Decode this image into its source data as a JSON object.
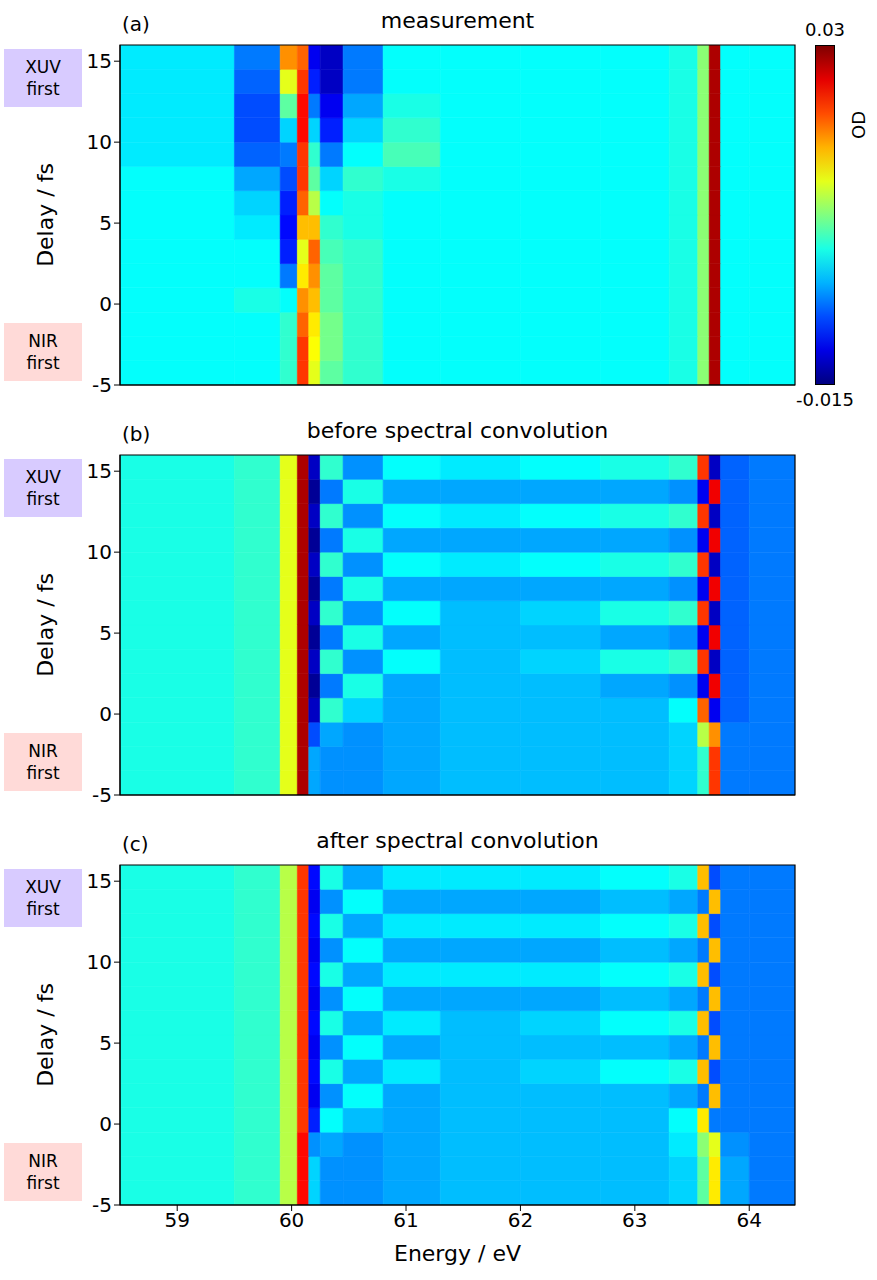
{
  "chart_data": [
    {
      "type": "heatmap",
      "title": "measurement",
      "panel_label": "(a)",
      "y_label": "Delay / fs",
      "xlim": [
        58.5,
        64.4
      ],
      "xticks": [
        59,
        60,
        61,
        62,
        63,
        64
      ],
      "ylim": [
        -5,
        16
      ],
      "yticks": [
        -5,
        0,
        5,
        10,
        15
      ],
      "tick_labels": "y",
      "annotations": [
        {
          "text": "XUV first",
          "color": "#d8cbff"
        },
        {
          "text": "NIR first",
          "color": "#ffdad8"
        }
      ],
      "colorbar": {
        "range": [
          -0.015,
          0.03
        ],
        "ticks": [
          0.03,
          -0.015
        ],
        "label": "OD"
      },
      "x_edges": [
        58.5,
        59.5,
        59.9,
        60.05,
        60.15,
        60.25,
        60.45,
        60.8,
        61.3,
        62.0,
        62.7,
        63.3,
        63.55,
        63.65,
        63.75,
        64.0,
        64.4
      ],
      "y_edges": [
        -5,
        -3.5,
        -2,
        -0.5,
        1,
        2.5,
        4,
        5.5,
        7,
        8.5,
        10,
        11.5,
        13,
        14.5,
        16
      ],
      "cells": [
        [
          0.002,
          0.002,
          0.004,
          0.022,
          0.012,
          0.006,
          0.004,
          0.002,
          0.002,
          0.002,
          0.002,
          0.003,
          0.008,
          0.028,
          0.002,
          0.002
        ],
        [
          0.002,
          0.002,
          0.004,
          0.022,
          0.013,
          0.007,
          0.004,
          0.002,
          0.002,
          0.002,
          0.002,
          0.003,
          0.008,
          0.028,
          0.002,
          0.002
        ],
        [
          0.002,
          0.002,
          0.004,
          0.02,
          0.014,
          0.007,
          0.004,
          0.002,
          0.002,
          0.002,
          0.002,
          0.003,
          0.008,
          0.028,
          0.002,
          0.002
        ],
        [
          0.002,
          0.003,
          0.002,
          0.018,
          0.016,
          0.006,
          0.004,
          0.002,
          0.002,
          0.002,
          0.002,
          0.003,
          0.008,
          0.028,
          0.002,
          0.002
        ],
        [
          0.002,
          0.002,
          -0.004,
          0.014,
          0.018,
          0.006,
          0.004,
          0.002,
          0.002,
          0.002,
          0.002,
          0.003,
          0.008,
          0.028,
          0.002,
          0.002
        ],
        [
          0.002,
          0.002,
          -0.008,
          0.012,
          0.02,
          0.005,
          0.004,
          0.002,
          0.002,
          0.002,
          0.002,
          0.003,
          0.008,
          0.028,
          0.002,
          0.002
        ],
        [
          0.002,
          0.001,
          -0.009,
          0.016,
          0.016,
          0.004,
          0.003,
          0.002,
          0.002,
          0.002,
          0.002,
          0.003,
          0.008,
          0.028,
          0.002,
          0.002
        ],
        [
          0.002,
          0.0,
          -0.008,
          0.02,
          0.01,
          0.002,
          0.003,
          0.002,
          0.002,
          0.002,
          0.002,
          0.003,
          0.008,
          0.028,
          0.002,
          0.002
        ],
        [
          0.002,
          -0.002,
          -0.006,
          0.022,
          0.006,
          0.0,
          0.004,
          0.003,
          0.002,
          0.002,
          0.002,
          0.003,
          0.008,
          0.028,
          0.002,
          0.002
        ],
        [
          0.001,
          -0.005,
          -0.004,
          0.022,
          0.004,
          -0.004,
          0.002,
          0.005,
          0.002,
          0.002,
          0.002,
          0.003,
          0.008,
          0.028,
          0.002,
          0.002
        ],
        [
          0.001,
          -0.006,
          0.0,
          0.024,
          0.0,
          -0.008,
          0.0,
          0.004,
          0.002,
          0.002,
          0.002,
          0.003,
          0.008,
          0.028,
          0.002,
          0.002
        ],
        [
          0.001,
          -0.006,
          0.006,
          0.024,
          -0.004,
          -0.01,
          -0.002,
          0.003,
          0.002,
          0.002,
          0.002,
          0.003,
          0.008,
          0.028,
          0.002,
          0.002
        ],
        [
          0.001,
          -0.005,
          0.012,
          0.022,
          -0.008,
          -0.012,
          -0.004,
          0.002,
          0.002,
          0.002,
          0.002,
          0.003,
          0.008,
          0.028,
          0.002,
          0.002
        ],
        [
          0.001,
          -0.004,
          0.018,
          0.02,
          -0.01,
          -0.012,
          -0.004,
          0.002,
          0.002,
          0.002,
          0.002,
          0.003,
          0.008,
          0.028,
          0.002,
          0.002
        ]
      ]
    },
    {
      "type": "heatmap",
      "title": "before spectral convolution",
      "panel_label": "(b)",
      "y_label": "Delay / fs",
      "xlim": [
        58.5,
        64.4
      ],
      "xticks": [
        59,
        60,
        61,
        62,
        63,
        64
      ],
      "ylim": [
        -5,
        16
      ],
      "yticks": [
        -5,
        0,
        5,
        10,
        15
      ],
      "tick_labels": "y",
      "annotations": [
        {
          "text": "XUV first",
          "color": "#d8cbff"
        },
        {
          "text": "NIR first",
          "color": "#ffdad8"
        }
      ],
      "x_edges": [
        58.5,
        59.5,
        59.9,
        60.05,
        60.15,
        60.25,
        60.45,
        60.8,
        61.3,
        62.0,
        62.7,
        63.3,
        63.55,
        63.65,
        63.75,
        64.0,
        64.4
      ],
      "y_edges": [
        -5,
        -3.5,
        -2,
        -0.5,
        1,
        2.5,
        4,
        5.5,
        7,
        8.5,
        10,
        11.5,
        13,
        14.5,
        16
      ],
      "cells": [
        [
          0.003,
          0.004,
          0.012,
          0.028,
          -0.002,
          -0.003,
          -0.003,
          -0.002,
          -0.001,
          -0.001,
          -0.001,
          0.0,
          0.004,
          0.022,
          -0.004,
          -0.004
        ],
        [
          0.003,
          0.004,
          0.012,
          0.028,
          -0.002,
          -0.003,
          -0.003,
          -0.002,
          -0.001,
          -0.001,
          -0.001,
          0.0,
          0.004,
          0.022,
          -0.004,
          -0.004
        ],
        [
          0.003,
          0.004,
          0.012,
          0.028,
          -0.006,
          -0.002,
          -0.003,
          -0.002,
          -0.001,
          -0.001,
          -0.001,
          0.0,
          0.01,
          0.018,
          -0.004,
          -0.004
        ],
        [
          0.003,
          0.004,
          0.012,
          0.028,
          -0.012,
          0.004,
          0.0,
          -0.002,
          -0.001,
          -0.001,
          -0.001,
          0.002,
          0.02,
          -0.01,
          -0.005,
          -0.004
        ],
        [
          0.003,
          0.004,
          0.012,
          0.028,
          -0.014,
          -0.004,
          0.003,
          -0.002,
          -0.001,
          -0.001,
          -0.002,
          -0.003,
          -0.01,
          0.025,
          -0.005,
          -0.004
        ],
        [
          0.003,
          0.004,
          0.012,
          0.028,
          -0.012,
          0.004,
          -0.003,
          0.002,
          -0.001,
          0.0,
          0.003,
          0.004,
          0.022,
          -0.012,
          -0.005,
          -0.004
        ],
        [
          0.003,
          0.004,
          0.012,
          0.028,
          -0.014,
          -0.004,
          0.003,
          -0.002,
          -0.001,
          -0.001,
          -0.002,
          -0.003,
          -0.01,
          0.025,
          -0.005,
          -0.004
        ],
        [
          0.003,
          0.004,
          0.012,
          0.028,
          -0.012,
          0.004,
          -0.003,
          0.002,
          -0.001,
          0.0,
          0.003,
          0.004,
          0.022,
          -0.012,
          -0.005,
          -0.004
        ],
        [
          0.003,
          0.004,
          0.012,
          0.028,
          -0.014,
          -0.004,
          0.003,
          -0.002,
          -0.002,
          -0.002,
          -0.002,
          -0.003,
          -0.01,
          0.025,
          -0.005,
          -0.004
        ],
        [
          0.003,
          0.004,
          0.012,
          0.028,
          -0.012,
          0.004,
          -0.003,
          0.002,
          0.001,
          0.002,
          0.003,
          0.004,
          0.022,
          -0.012,
          -0.005,
          -0.004
        ],
        [
          0.003,
          0.004,
          0.012,
          0.028,
          -0.014,
          -0.004,
          0.003,
          -0.002,
          -0.002,
          -0.002,
          -0.002,
          -0.003,
          -0.01,
          0.025,
          -0.005,
          -0.004
        ],
        [
          0.003,
          0.004,
          0.012,
          0.028,
          -0.012,
          0.004,
          -0.003,
          0.002,
          0.001,
          0.002,
          0.003,
          0.004,
          0.022,
          -0.012,
          -0.005,
          -0.004
        ],
        [
          0.003,
          0.004,
          0.012,
          0.028,
          -0.014,
          -0.004,
          0.003,
          -0.002,
          -0.002,
          -0.002,
          -0.002,
          -0.003,
          -0.01,
          0.025,
          -0.005,
          -0.004
        ],
        [
          0.003,
          0.004,
          0.012,
          0.028,
          -0.012,
          0.004,
          -0.003,
          0.002,
          0.001,
          0.002,
          0.003,
          0.004,
          0.022,
          -0.012,
          -0.005,
          -0.004
        ]
      ]
    },
    {
      "type": "heatmap",
      "title": "after spectral convolution",
      "panel_label": "(c)",
      "y_label": "Delay / fs",
      "x_label": "Energy / eV",
      "xlim": [
        58.5,
        64.4
      ],
      "xticks": [
        59,
        60,
        61,
        62,
        63,
        64
      ],
      "ylim": [
        -5,
        16
      ],
      "yticks": [
        -5,
        0,
        5,
        10,
        15
      ],
      "annotations": [
        {
          "text": "XUV first",
          "color": "#d8cbff"
        },
        {
          "text": "NIR first",
          "color": "#ffdad8"
        }
      ],
      "x_edges": [
        58.5,
        59.5,
        59.9,
        60.05,
        60.15,
        60.25,
        60.45,
        60.8,
        61.3,
        62.0,
        62.7,
        63.3,
        63.55,
        63.65,
        63.75,
        64.0,
        64.4
      ],
      "y_edges": [
        -5,
        -3.5,
        -2,
        -0.5,
        1,
        2.5,
        4,
        5.5,
        7,
        8.5,
        10,
        11.5,
        13,
        14.5,
        16
      ],
      "cells": [
        [
          0.003,
          0.004,
          0.01,
          0.024,
          0.0,
          -0.003,
          -0.003,
          -0.002,
          -0.001,
          -0.001,
          -0.001,
          0.0,
          0.006,
          0.014,
          -0.002,
          -0.004
        ],
        [
          0.003,
          0.004,
          0.01,
          0.024,
          0.0,
          -0.003,
          -0.003,
          -0.002,
          -0.001,
          -0.001,
          -0.001,
          0.0,
          0.006,
          0.014,
          -0.002,
          -0.004
        ],
        [
          0.003,
          0.004,
          0.01,
          0.024,
          -0.003,
          -0.002,
          -0.003,
          -0.002,
          -0.001,
          -0.001,
          -0.001,
          0.001,
          0.008,
          0.012,
          -0.003,
          -0.004
        ],
        [
          0.003,
          0.004,
          0.01,
          0.022,
          -0.008,
          0.002,
          -0.001,
          -0.002,
          -0.001,
          -0.001,
          -0.001,
          0.002,
          0.014,
          -0.004,
          -0.004,
          -0.004
        ],
        [
          0.003,
          0.004,
          0.01,
          0.022,
          -0.01,
          -0.003,
          0.002,
          -0.002,
          -0.001,
          -0.001,
          -0.001,
          -0.002,
          -0.004,
          0.016,
          -0.004,
          -0.004
        ],
        [
          0.003,
          0.004,
          0.01,
          0.022,
          -0.009,
          0.003,
          -0.002,
          0.001,
          -0.001,
          0.0,
          0.002,
          0.003,
          0.016,
          -0.006,
          -0.004,
          -0.004
        ],
        [
          0.003,
          0.004,
          0.01,
          0.022,
          -0.01,
          -0.003,
          0.002,
          -0.002,
          -0.001,
          -0.001,
          -0.001,
          -0.002,
          -0.004,
          0.016,
          -0.004,
          -0.004
        ],
        [
          0.003,
          0.004,
          0.01,
          0.022,
          -0.009,
          0.003,
          -0.002,
          0.001,
          -0.001,
          0.0,
          0.002,
          0.003,
          0.016,
          -0.006,
          -0.004,
          -0.004
        ],
        [
          0.003,
          0.004,
          0.01,
          0.022,
          -0.01,
          -0.003,
          0.002,
          -0.002,
          -0.002,
          -0.002,
          -0.001,
          -0.002,
          -0.004,
          0.016,
          -0.004,
          -0.004
        ],
        [
          0.003,
          0.004,
          0.01,
          0.022,
          -0.009,
          0.003,
          -0.002,
          0.001,
          0.001,
          0.001,
          0.002,
          0.003,
          0.016,
          -0.006,
          -0.004,
          -0.004
        ],
        [
          0.003,
          0.004,
          0.01,
          0.022,
          -0.01,
          -0.003,
          0.002,
          -0.002,
          -0.002,
          -0.002,
          -0.001,
          -0.002,
          -0.004,
          0.016,
          -0.004,
          -0.004
        ],
        [
          0.003,
          0.004,
          0.01,
          0.022,
          -0.009,
          0.003,
          -0.002,
          0.001,
          0.001,
          0.001,
          0.002,
          0.003,
          0.016,
          -0.006,
          -0.004,
          -0.004
        ],
        [
          0.003,
          0.004,
          0.01,
          0.022,
          -0.01,
          -0.003,
          0.002,
          -0.002,
          -0.002,
          -0.002,
          -0.001,
          -0.002,
          -0.004,
          0.016,
          -0.004,
          -0.004
        ],
        [
          0.003,
          0.004,
          0.01,
          0.022,
          -0.009,
          0.003,
          -0.002,
          0.001,
          0.001,
          0.001,
          0.002,
          0.003,
          0.016,
          -0.006,
          -0.004,
          -0.004
        ]
      ]
    }
  ]
}
